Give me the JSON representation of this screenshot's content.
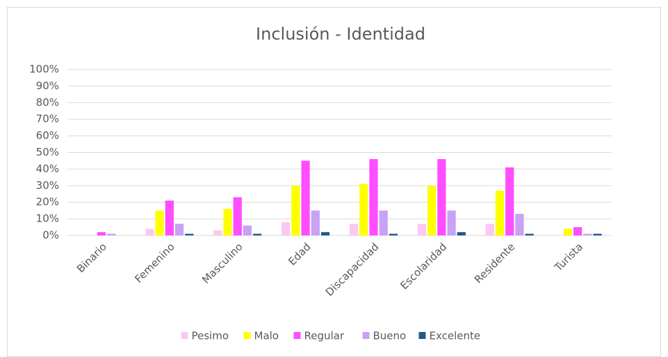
{
  "chart_data": {
    "type": "bar",
    "title": "Inclusión - Identidad",
    "categories": [
      "Binario",
      "Femenino",
      "Masculino",
      "Edad",
      "Discapacidad",
      "Escolaridad",
      "Residente",
      "Turista"
    ],
    "series": [
      {
        "name": "Pesimo",
        "color": "#fac8f2",
        "values": [
          0,
          4,
          3,
          8,
          7,
          7,
          7,
          0
        ]
      },
      {
        "name": "Malo",
        "color": "#ffff00",
        "values": [
          0,
          15,
          16,
          30,
          31,
          30,
          27,
          4
        ]
      },
      {
        "name": "Regular",
        "color": "#ff4dff",
        "values": [
          2,
          21,
          23,
          45,
          46,
          46,
          41,
          5
        ]
      },
      {
        "name": "Bueno",
        "color": "#c8a2f5",
        "values": [
          1,
          7,
          6,
          15,
          15,
          15,
          13,
          1
        ]
      },
      {
        "name": "Excelente",
        "color": "#1f5a8c",
        "values": [
          0,
          1,
          1,
          2,
          1,
          2,
          1,
          1
        ]
      }
    ],
    "ylim": [
      0,
      100
    ],
    "yticks": [
      {
        "value": 0,
        "label": "0%"
      },
      {
        "value": 10,
        "label": "10%"
      },
      {
        "value": 20,
        "label": "20%"
      },
      {
        "value": 30,
        "label": "30%"
      },
      {
        "value": 40,
        "label": "40%"
      },
      {
        "value": 50,
        "label": "50%"
      },
      {
        "value": 60,
        "label": "60%"
      },
      {
        "value": 70,
        "label": "70%"
      },
      {
        "value": 80,
        "label": "80%"
      },
      {
        "value": 90,
        "label": "90%"
      },
      {
        "value": 100,
        "label": "100%"
      }
    ],
    "grid": true,
    "legend": "bottom"
  }
}
